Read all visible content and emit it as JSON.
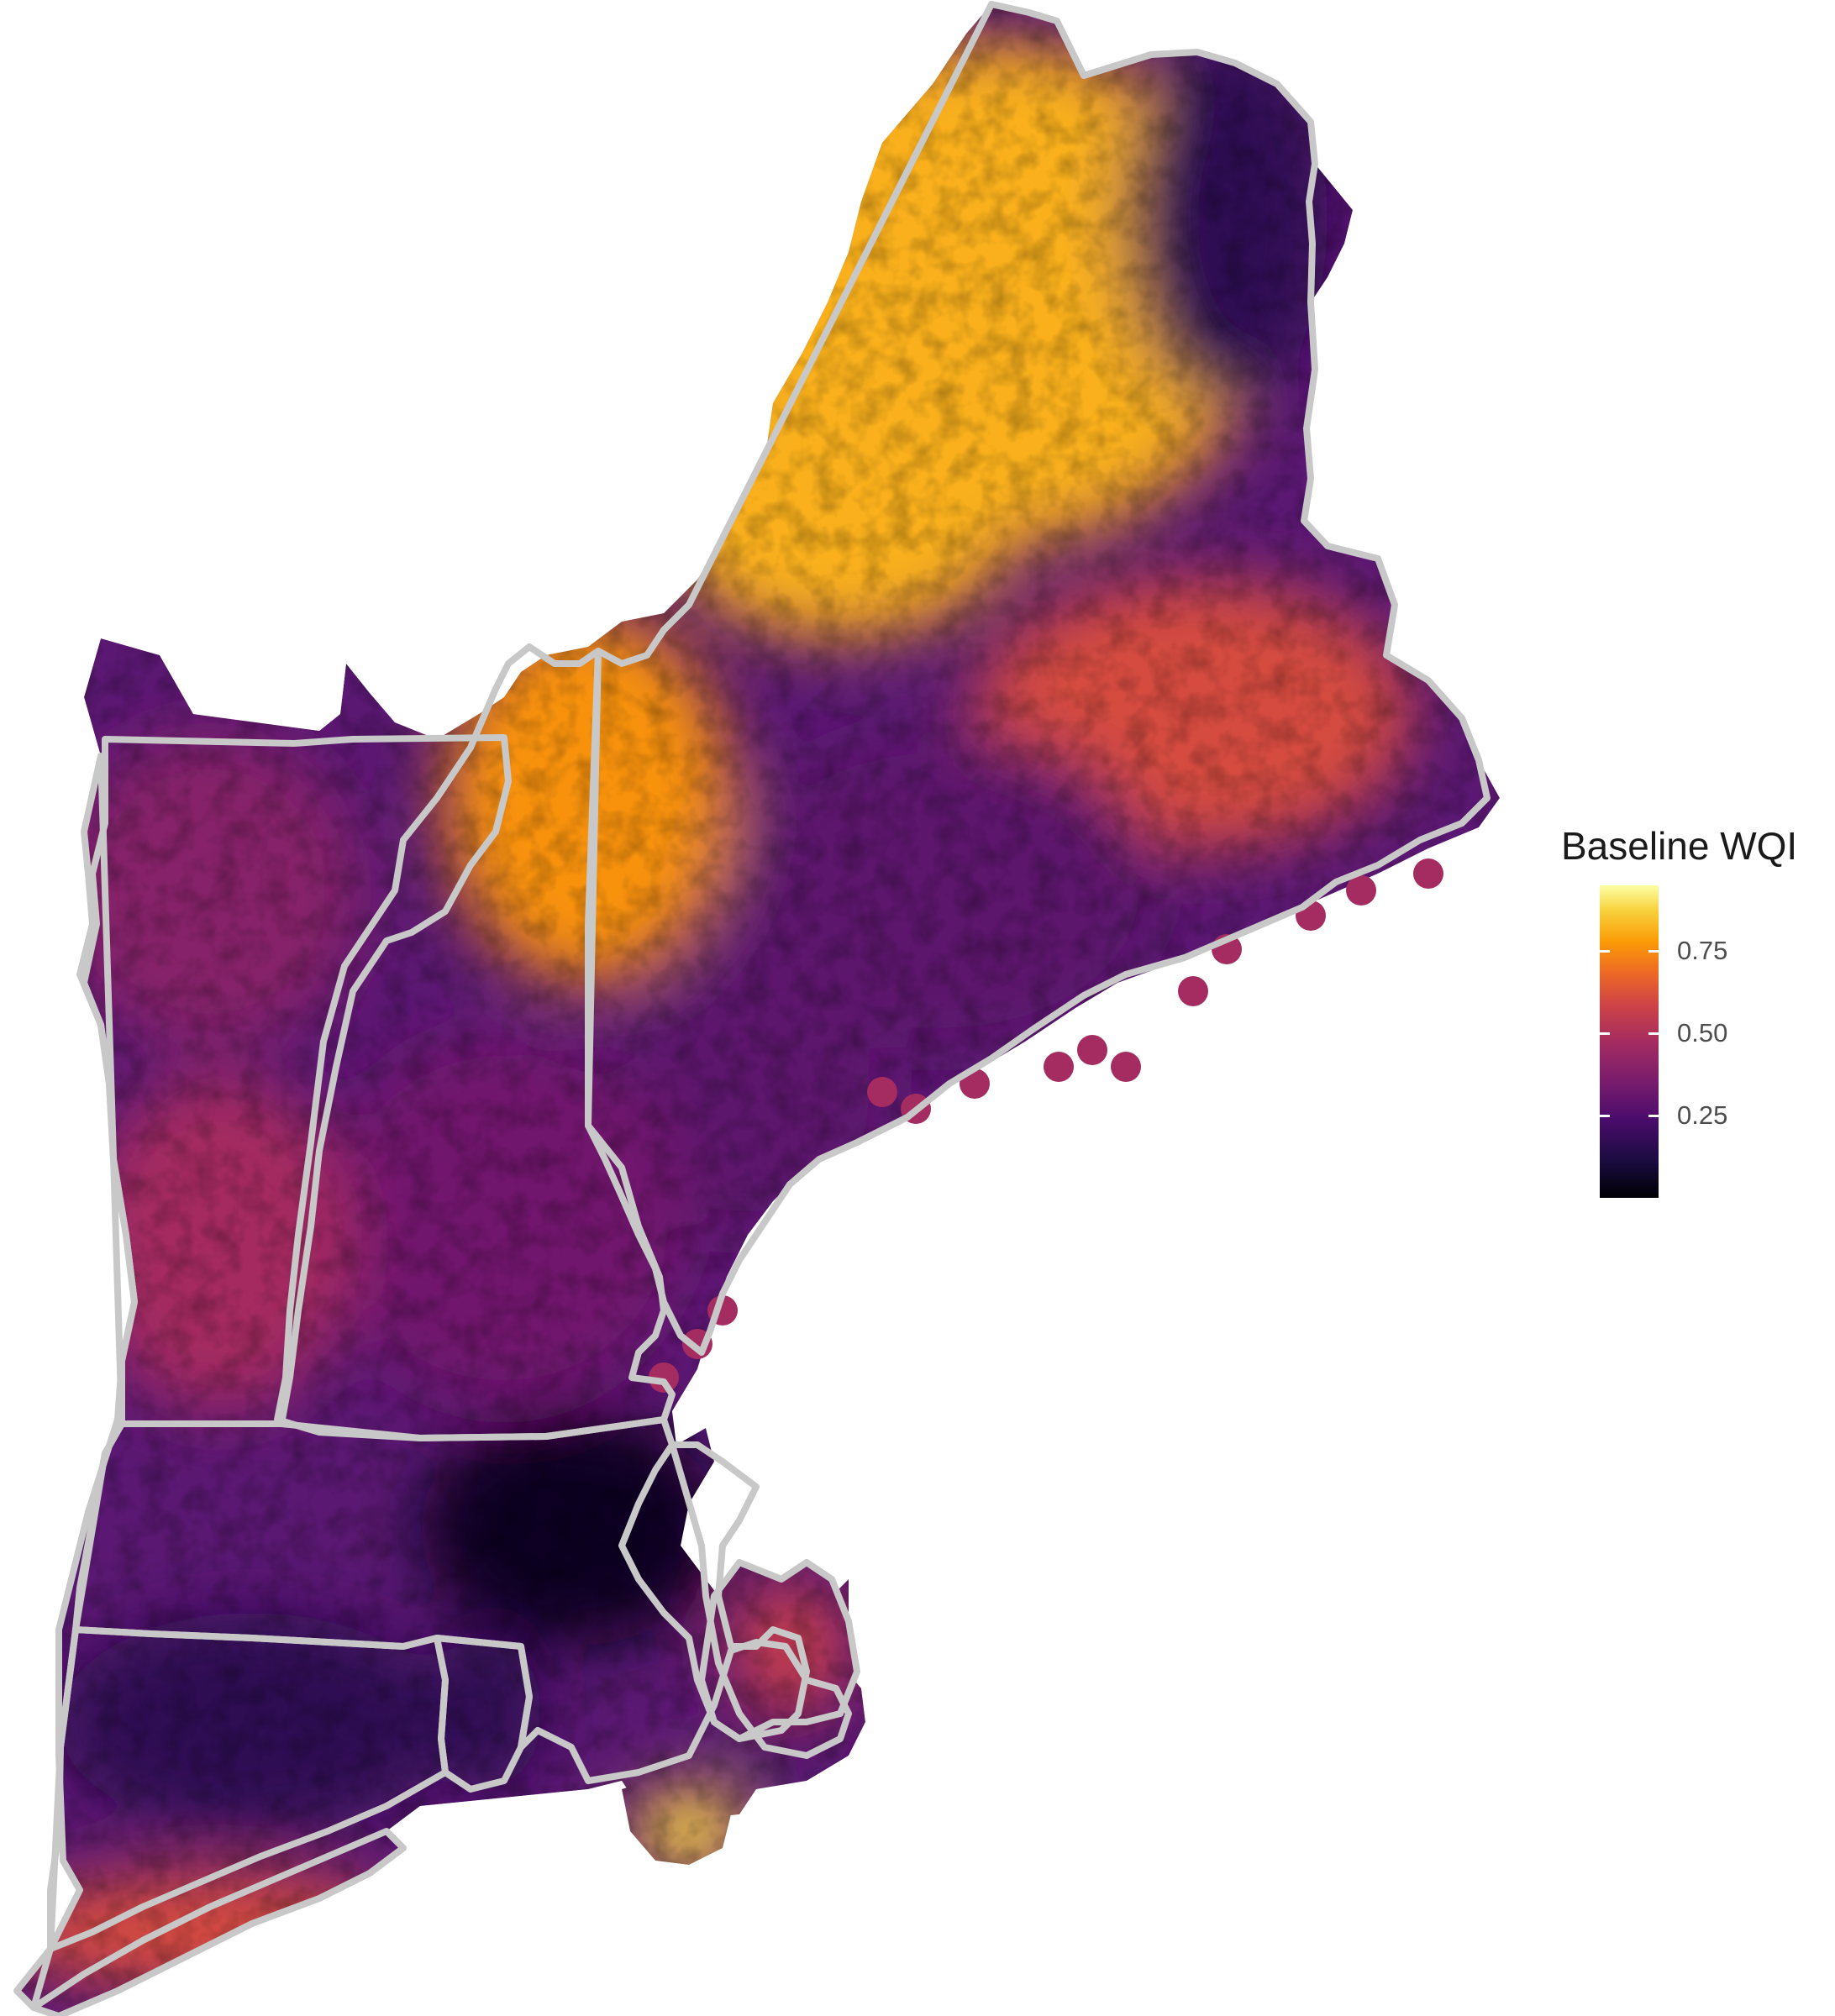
{
  "legend": {
    "title": "Baseline WQI",
    "ticks": [
      {
        "value": 0.25,
        "label": "0.25"
      },
      {
        "value": 0.5,
        "label": "0.50"
      },
      {
        "value": 0.75,
        "label": "0.75"
      }
    ],
    "range": [
      0.0,
      0.95
    ]
  },
  "colors": {
    "scale": [
      "#000004",
      "#1b0c41",
      "#4a0c6b",
      "#781c6d",
      "#a52c60",
      "#cf4446",
      "#ed6925",
      "#fb9b06",
      "#f7d13d",
      "#fcffa4"
    ],
    "boundary": "#c8c8c8",
    "background": "#ffffff"
  },
  "chart_data": {
    "type": "heatmap",
    "map_type": "choropleth",
    "region": "New England",
    "states": [
      "Maine",
      "New Hampshire",
      "Vermont",
      "Massachusetts",
      "Rhode Island",
      "Connecticut",
      "New York (Long Island)"
    ],
    "colorbar": "inferno",
    "value_range": [
      0.0,
      0.95
    ],
    "legend_position": "right",
    "grid": false,
    "regional_values": [
      {
        "region": "northern Maine",
        "value": 0.78
      },
      {
        "region": "northeastern Maine",
        "value": 0.15
      },
      {
        "region": "central Maine",
        "value": 0.55
      },
      {
        "region": "southern Maine",
        "value": 0.25
      },
      {
        "region": "northern New Hampshire",
        "value": 0.72
      },
      {
        "region": "southern New Hampshire",
        "value": 0.3
      },
      {
        "region": "northern Vermont",
        "value": 0.35
      },
      {
        "region": "southern Vermont",
        "value": 0.42
      },
      {
        "region": "eastern Massachusetts",
        "value": 0.05
      },
      {
        "region": "Cape Cod",
        "value": 0.5
      },
      {
        "region": "Cape Cod Bay",
        "value": 0.2
      },
      {
        "region": "Martha's Vineyard / Nantucket",
        "value": 0.85
      },
      {
        "region": "Rhode Island",
        "value": 0.15
      },
      {
        "region": "Connecticut",
        "value": 0.15
      },
      {
        "region": "Long Island",
        "value": 0.55
      }
    ]
  }
}
